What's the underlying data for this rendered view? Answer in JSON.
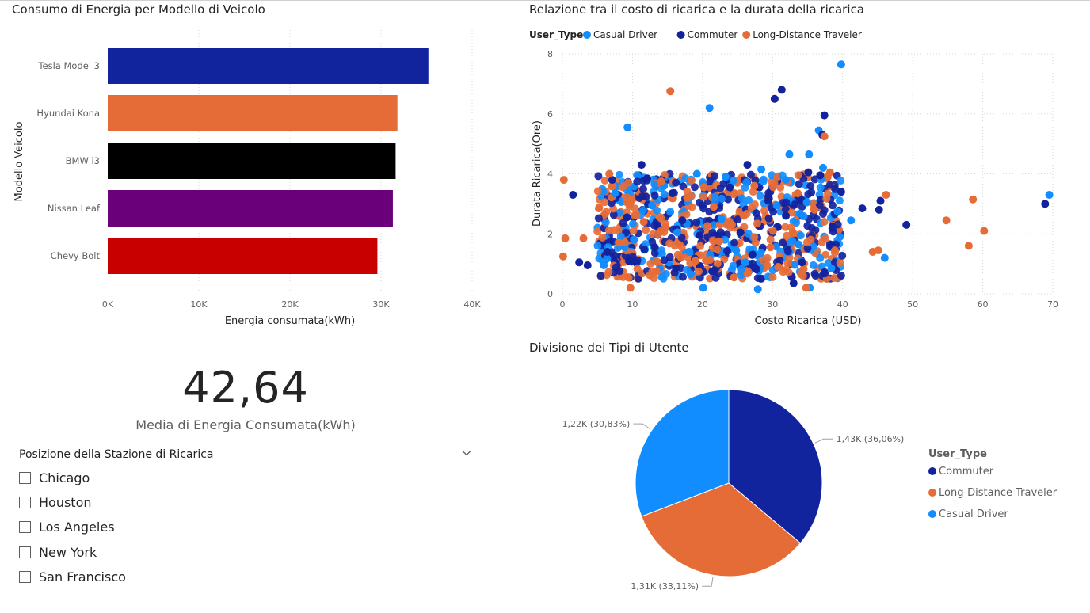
{
  "bar_chart": {
    "title": "Consumo di Energia per Modello di Veicolo",
    "chart_data": {
      "type": "bar",
      "orientation": "horizontal",
      "categories": [
        "Tesla Model 3",
        "Hyundai Kona",
        "BMW i3",
        "Nissan Leaf",
        "Chevy Bolt"
      ],
      "values": [
        35200,
        31800,
        31600,
        31300,
        29600
      ],
      "colors": [
        "#12239E",
        "#E66C37",
        "#000000",
        "#6B007B",
        "#C80000"
      ],
      "xlabel": "Energia consumata(kWh)",
      "ylabel": "Modello Veicolo",
      "xlim": [
        0,
        40000
      ],
      "xticks": [
        "0K",
        "10K",
        "20K",
        "30K",
        "40K"
      ],
      "grid": true
    }
  },
  "scatter_chart": {
    "title": "Relazione tra il costo di ricarica e la durata della ricarica",
    "legend_title": "User_Type",
    "legend": [
      {
        "name": "Casual Driver",
        "color": "#118DFF"
      },
      {
        "name": "Commuter",
        "color": "#12239E"
      },
      {
        "name": "Long-Distance Traveler",
        "color": "#E66C37"
      }
    ],
    "chart_data": {
      "type": "scatter",
      "xlabel": "Costo Ricarica (USD)",
      "ylabel": "Durata Ricarica(Ore)",
      "xlim": [
        0,
        70
      ],
      "ylim": [
        0,
        8
      ],
      "xticks": [
        "0",
        "10",
        "20",
        "30",
        "40",
        "50",
        "60",
        "70"
      ],
      "yticks": [
        "0",
        "2",
        "4",
        "6",
        "8"
      ],
      "grid": true,
      "series": [
        {
          "name": "Casual Driver",
          "color": "#118DFF",
          "points": [
            [
              39.8,
              7.65
            ],
            [
              21,
              6.2
            ],
            [
              9.3,
              5.55
            ],
            [
              36.6,
              5.45
            ],
            [
              32.4,
              4.65
            ],
            [
              35.2,
              4.65
            ],
            [
              69.5,
              3.3
            ],
            [
              46,
              1.2
            ],
            [
              20.1,
              0.2
            ],
            [
              27.9,
              0.15
            ],
            [
              35.3,
              0.2
            ],
            [
              41.2,
              2.45
            ],
            [
              39.6,
              1.9
            ],
            [
              37.2,
              4.2
            ],
            [
              23.3,
              3.9
            ],
            [
              28.4,
              4.15
            ],
            [
              19.2,
              4.0
            ],
            [
              12.8,
              2.95
            ],
            [
              16.4,
              2.05
            ],
            [
              24.8,
              1.45
            ],
            [
              30.6,
              2.95
            ],
            [
              33.7,
              1.65
            ],
            [
              7.5,
              3.35
            ],
            [
              26.1,
              1.05
            ],
            [
              38.4,
              0.85
            ],
            [
              10.2,
              1.8
            ],
            [
              14.5,
              3.6
            ],
            [
              31.9,
              3.8
            ],
            [
              18.3,
              0.65
            ],
            [
              5.9,
              0.95
            ],
            [
              22.7,
              2.5
            ],
            [
              34.9,
              3.05
            ]
          ]
        },
        {
          "name": "Commuter",
          "color": "#12239E",
          "points": [
            [
              31.3,
              6.8
            ],
            [
              30.3,
              6.5
            ],
            [
              37.4,
              5.95
            ],
            [
              37.1,
              5.3
            ],
            [
              45.2,
              2.8
            ],
            [
              45.4,
              3.1
            ],
            [
              49.1,
              2.3
            ],
            [
              68.9,
              3.0
            ],
            [
              1.5,
              3.3
            ],
            [
              2.4,
              1.05
            ],
            [
              3.6,
              0.95
            ],
            [
              9.5,
              1.1
            ],
            [
              26.4,
              4.3
            ],
            [
              35.1,
              4.05
            ],
            [
              42.8,
              2.85
            ],
            [
              33.0,
              0.35
            ],
            [
              11.3,
              4.3
            ],
            [
              36.8,
              3.95
            ],
            [
              7.1,
              3.8
            ],
            [
              17.1,
              2.45
            ],
            [
              25.4,
              2.05
            ],
            [
              29.4,
              3.1
            ],
            [
              13.2,
              1.55
            ],
            [
              21.4,
              0.75
            ],
            [
              38.6,
              2.25
            ],
            [
              15.7,
              3.35
            ],
            [
              27.1,
              1.3
            ],
            [
              9.2,
              2.55
            ],
            [
              34.2,
              1.05
            ],
            [
              19.6,
              1.95
            ],
            [
              6.4,
              1.4
            ],
            [
              23.9,
              3.55
            ],
            [
              31.9,
              2.6
            ],
            [
              39.8,
              3.4
            ],
            [
              16.2,
              0.85
            ],
            [
              12.1,
              3.85
            ]
          ]
        },
        {
          "name": "Long-Distance Traveler",
          "color": "#E66C37",
          "points": [
            [
              15.4,
              6.75
            ],
            [
              37.4,
              5.25
            ],
            [
              0.2,
              3.8
            ],
            [
              0.1,
              1.25
            ],
            [
              0.4,
              1.85
            ],
            [
              3.0,
              1.85
            ],
            [
              46.2,
              3.3
            ],
            [
              54.8,
              2.45
            ],
            [
              58.6,
              3.15
            ],
            [
              60.2,
              2.1
            ],
            [
              58.0,
              1.6
            ],
            [
              44.3,
              1.4
            ],
            [
              45.1,
              1.45
            ],
            [
              9.7,
              0.2
            ],
            [
              34.8,
              0.2
            ],
            [
              38.2,
              4.05
            ],
            [
              6.7,
              4.0
            ],
            [
              14.1,
              3.75
            ],
            [
              21.6,
              2.9
            ],
            [
              27.4,
              3.6
            ],
            [
              32.9,
              2.05
            ],
            [
              36.0,
              2.8
            ],
            [
              8.1,
              1.7
            ],
            [
              19.0,
              1.1
            ],
            [
              24.5,
              0.55
            ],
            [
              30.8,
              0.9
            ],
            [
              11.6,
              2.4
            ],
            [
              17.8,
              3.2
            ],
            [
              25.9,
              2.6
            ],
            [
              29.7,
              1.55
            ],
            [
              33.6,
              3.35
            ],
            [
              5.2,
              2.85
            ],
            [
              22.4,
              1.75
            ],
            [
              13.4,
              0.75
            ],
            [
              38.9,
              1.45
            ],
            [
              20.2,
              3.55
            ]
          ]
        }
      ]
    }
  },
  "pie_chart": {
    "title": "Divisione dei Tipi di Utente",
    "legend_title": "User_Type",
    "chart_data": {
      "type": "pie",
      "labels": [
        "Commuter",
        "Long-Distance Traveler",
        "Casual Driver"
      ],
      "values": [
        1430,
        1310,
        1220
      ],
      "percents": [
        36.06,
        33.11,
        30.83
      ],
      "colors": [
        "#12239E",
        "#E66C37",
        "#118DFF"
      ],
      "data_labels": [
        "1,43K (36,06%)",
        "1,31K (33,11%)",
        "1,22K (30,83%)"
      ]
    }
  },
  "kpi": {
    "value": "42,64",
    "label": "Media di Energia Consumata(kWh)"
  },
  "slicer": {
    "title": "Posizione della Stazione di Ricarica",
    "items": [
      "Chicago",
      "Houston",
      "Los Angeles",
      "New York",
      "San Francisco"
    ]
  }
}
